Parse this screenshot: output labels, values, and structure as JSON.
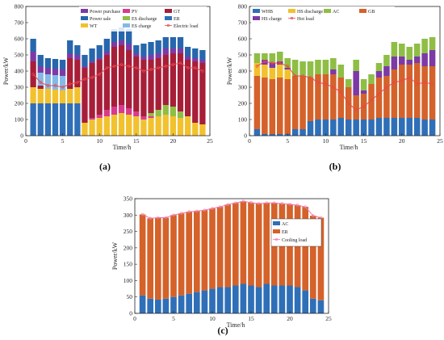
{
  "chart_data": [
    {
      "panel_label": "(a)",
      "type": "bar",
      "stacked": true,
      "xlabel": "Time/h",
      "ylabel": "Power/kW",
      "xticks": [
        0,
        5,
        10,
        15,
        20,
        25
      ],
      "yticks": [
        0,
        100,
        200,
        300,
        400,
        500,
        600,
        700,
        800
      ],
      "xlim": [
        0,
        25
      ],
      "ylim": [
        0,
        800
      ],
      "grid": false,
      "legend_position": "top",
      "x": [
        1,
        2,
        3,
        4,
        5,
        6,
        7,
        8,
        9,
        10,
        11,
        12,
        13,
        14,
        15,
        16,
        17,
        18,
        19,
        20,
        21,
        22,
        23,
        24
      ],
      "series": [
        {
          "name": "ER",
          "color": "#2f6fb7",
          "values": [
            200,
            200,
            200,
            200,
            200,
            200,
            200,
            0,
            0,
            0,
            0,
            0,
            0,
            0,
            0,
            0,
            0,
            0,
            0,
            0,
            0,
            0,
            0,
            0
          ]
        },
        {
          "name": "WT",
          "color": "#f2c12e",
          "values": [
            100,
            90,
            90,
            85,
            80,
            90,
            100,
            80,
            100,
            110,
            120,
            130,
            140,
            130,
            120,
            100,
            110,
            120,
            130,
            120,
            110,
            120,
            80,
            70
          ]
        },
        {
          "name": "PV",
          "color": "#d93a8e",
          "values": [
            0,
            0,
            0,
            0,
            0,
            0,
            0,
            0,
            10,
            20,
            40,
            50,
            50,
            40,
            30,
            20,
            10,
            0,
            0,
            0,
            0,
            0,
            0,
            0
          ]
        },
        {
          "name": "ES discharge",
          "color": "#8fbe45",
          "values": [
            0,
            0,
            0,
            0,
            0,
            0,
            0,
            0,
            0,
            0,
            0,
            0,
            0,
            0,
            0,
            0,
            20,
            40,
            60,
            60,
            40,
            0,
            0,
            0
          ]
        },
        {
          "name": "GT",
          "color": "#a71e38",
          "values": [
            160,
            20,
            0,
            0,
            0,
            190,
            170,
            340,
            340,
            340,
            340,
            370,
            370,
            360,
            340,
            350,
            330,
            320,
            310,
            330,
            360,
            350,
            380,
            380
          ]
        },
        {
          "name": "ES charge",
          "color": "#86b8e6",
          "values": [
            0,
            80,
            90,
            90,
            90,
            0,
            0,
            0,
            0,
            0,
            0,
            0,
            0,
            0,
            0,
            0,
            0,
            0,
            0,
            0,
            0,
            0,
            0,
            0
          ]
        },
        {
          "name": "Power purchase",
          "color": "#7c3aa6",
          "values": [
            60,
            40,
            40,
            40,
            40,
            30,
            30,
            10,
            10,
            10,
            20,
            30,
            30,
            40,
            20,
            20,
            30,
            30,
            40,
            30,
            30,
            20,
            20,
            20
          ]
        },
        {
          "name": "Power sale",
          "color": "#2766ad",
          "values": [
            80,
            70,
            60,
            60,
            60,
            80,
            60,
            70,
            80,
            80,
            80,
            80,
            80,
            90,
            50,
            80,
            80,
            80,
            70,
            70,
            70,
            60,
            60,
            60
          ]
        }
      ],
      "line": {
        "name": "Electric load",
        "color": "#e8474c",
        "values": [
          380,
          330,
          310,
          310,
          300,
          320,
          330,
          350,
          360,
          380,
          420,
          430,
          440,
          430,
          420,
          400,
          410,
          420,
          430,
          440,
          450,
          420,
          420,
          400
        ]
      },
      "legend": [
        "Power purchase",
        "PV",
        "GT",
        "Power sale",
        "ES discharge",
        "ER",
        "WT",
        "ES charge",
        "Electric load"
      ]
    },
    {
      "panel_label": "(b)",
      "type": "bar",
      "stacked": true,
      "xlabel": "Time/h",
      "ylabel": "Power/kW",
      "xticks": [
        0,
        5,
        10,
        15,
        20,
        25
      ],
      "yticks": [
        0,
        100,
        200,
        300,
        400,
        500,
        600,
        700,
        800
      ],
      "xlim": [
        0,
        25
      ],
      "ylim": [
        0,
        800
      ],
      "grid": false,
      "legend_position": "top",
      "x": [
        1,
        2,
        3,
        4,
        5,
        6,
        7,
        8,
        9,
        10,
        11,
        12,
        13,
        14,
        15,
        16,
        17,
        18,
        19,
        20,
        21,
        22,
        23,
        24
      ],
      "series": [
        {
          "name": "WHB",
          "color": "#2f6fb7",
          "values": [
            40,
            10,
            10,
            10,
            10,
            40,
            40,
            90,
            100,
            100,
            100,
            110,
            100,
            100,
            100,
            100,
            110,
            110,
            110,
            110,
            110,
            110,
            100,
            100
          ]
        },
        {
          "name": "GB",
          "color": "#d4622a",
          "values": [
            330,
            350,
            340,
            350,
            340,
            330,
            330,
            270,
            280,
            280,
            280,
            250,
            200,
            150,
            160,
            220,
            250,
            260,
            300,
            330,
            330,
            340,
            330,
            330
          ]
        },
        {
          "name": "HS discharge",
          "color": "#f2c12e",
          "values": [
            80,
            80,
            70,
            80,
            60,
            0,
            0,
            0,
            0,
            0,
            0,
            0,
            0,
            0,
            0,
            0,
            0,
            0,
            0,
            0,
            0,
            0,
            0,
            0
          ]
        },
        {
          "name": "HS charge",
          "color": "#7c3aa6",
          "values": [
            0,
            30,
            30,
            20,
            10,
            0,
            0,
            0,
            0,
            0,
            30,
            0,
            0,
            150,
            20,
            0,
            40,
            60,
            80,
            50,
            30,
            40,
            80,
            100
          ]
        },
        {
          "name": "AC",
          "color": "#8fbe45",
          "values": [
            60,
            40,
            60,
            60,
            60,
            100,
            90,
            100,
            90,
            90,
            70,
            80,
            50,
            70,
            70,
            60,
            50,
            70,
            90,
            80,
            80,
            80,
            90,
            80
          ]
        }
      ],
      "line": {
        "name": "Hot load",
        "color": "#e8474c",
        "values": [
          430,
          460,
          450,
          450,
          430,
          370,
          370,
          360,
          330,
          320,
          300,
          270,
          200,
          160,
          180,
          220,
          260,
          300,
          330,
          340,
          360,
          320,
          330,
          320
        ]
      },
      "legend": [
        "WHB",
        "HS discharge",
        "AC",
        "GB",
        "HS charge",
        "Hot load"
      ]
    },
    {
      "panel_label": "(c)",
      "type": "bar",
      "stacked": true,
      "xlabel": "Time/h",
      "ylabel": "Power/kW",
      "xticks": [
        0,
        5,
        10,
        15,
        20,
        25
      ],
      "yticks": [
        0,
        50,
        100,
        150,
        200,
        250,
        300,
        350
      ],
      "xlim": [
        0,
        25
      ],
      "ylim": [
        0,
        350
      ],
      "grid": false,
      "legend_position": "center-right",
      "x": [
        1,
        2,
        3,
        4,
        5,
        6,
        7,
        8,
        9,
        10,
        11,
        12,
        13,
        14,
        15,
        16,
        17,
        18,
        19,
        20,
        21,
        22,
        23,
        24
      ],
      "series": [
        {
          "name": "AC",
          "color": "#2f6fb7",
          "values": [
            55,
            45,
            42,
            45,
            50,
            55,
            60,
            65,
            70,
            75,
            80,
            80,
            85,
            90,
            85,
            80,
            90,
            85,
            85,
            85,
            80,
            70,
            45,
            40
          ]
        },
        {
          "name": "ER",
          "color": "#d4622a",
          "values": [
            247,
            245,
            250,
            247,
            250,
            250,
            250,
            247,
            245,
            245,
            245,
            252,
            252,
            252,
            253,
            255,
            247,
            252,
            250,
            248,
            250,
            255,
            253,
            252
          ]
        }
      ],
      "line": {
        "name": "Cooling load",
        "color": "#f07aa8",
        "values": [
          302,
          290,
          292,
          292,
          300,
          305,
          310,
          312,
          315,
          320,
          325,
          332,
          337,
          342,
          338,
          335,
          337,
          337,
          335,
          333,
          330,
          325,
          298,
          292
        ]
      },
      "legend": [
        "AC",
        "ER",
        "Cooling load"
      ]
    }
  ]
}
